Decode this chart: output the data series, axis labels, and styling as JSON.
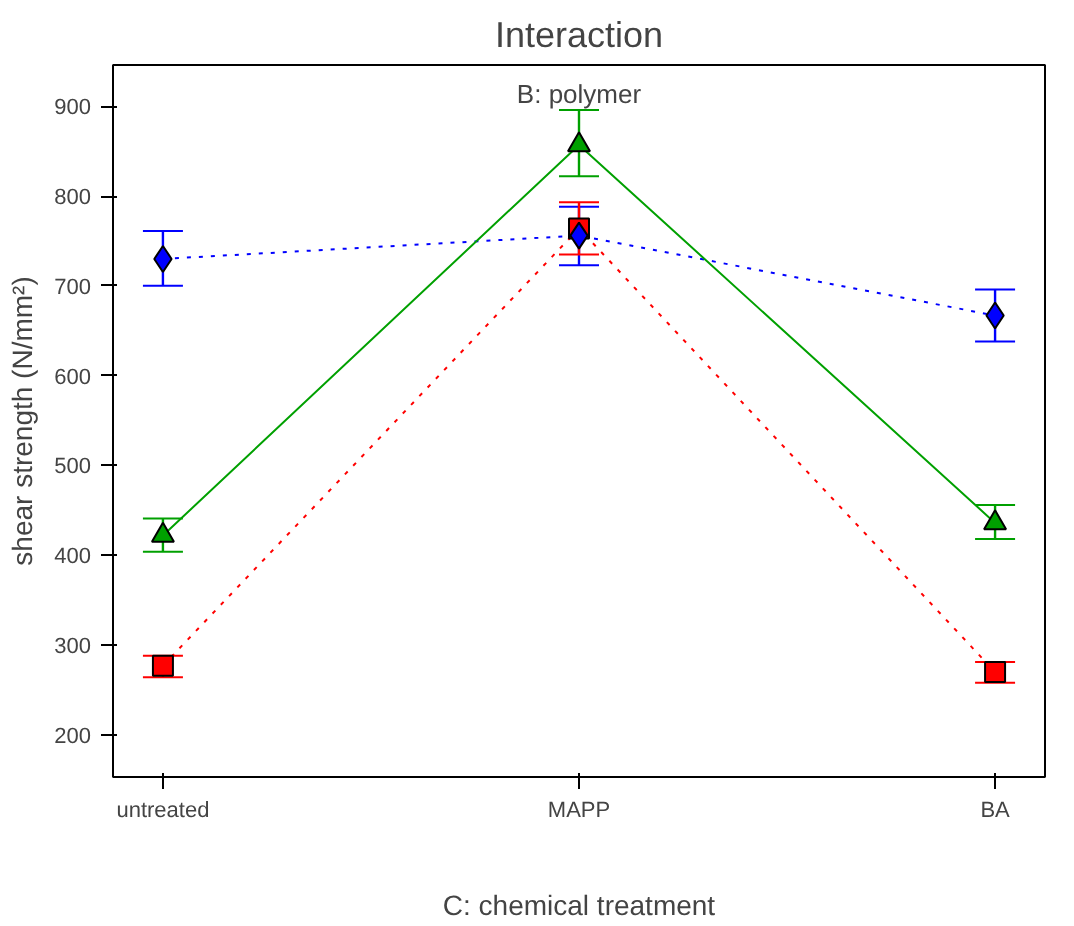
{
  "chart_data": {
    "type": "line",
    "title": "Interaction",
    "annotations": [
      "B: polymer"
    ],
    "xlabel": "C: chemical treatment",
    "ylabel": "shear strength (N/mm²)",
    "categories": [
      "untreated",
      "MAPP",
      "BA"
    ],
    "ylim": [
      153,
      946
    ],
    "yticks": [
      200,
      300,
      400,
      500,
      600,
      700,
      800,
      900
    ],
    "grid": false,
    "series": [
      {
        "color": "#0000ff",
        "marker": "diamond",
        "line_style": "dotted",
        "values": [
          730,
          756,
          667
        ],
        "errors": [
          [
            700,
            761
          ],
          [
            723,
            788
          ],
          [
            638,
            696
          ]
        ]
      },
      {
        "color": "#00a000",
        "marker": "triangle",
        "line_style": "solid",
        "values": [
          422,
          857,
          436
        ],
        "errors": [
          [
            404,
            441
          ],
          [
            822,
            896
          ],
          [
            418,
            456
          ]
        ]
      },
      {
        "color": "#ff0000",
        "marker": "square",
        "line_style": "dotted",
        "values": [
          277,
          764,
          270
        ],
        "errors": [
          [
            264,
            288
          ],
          [
            735,
            793
          ],
          [
            258,
            281
          ]
        ]
      }
    ]
  }
}
